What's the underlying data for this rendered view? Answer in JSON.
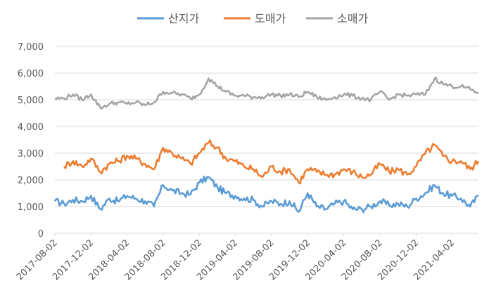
{
  "chart_data": {
    "type": "line",
    "title": "",
    "xlabel": "",
    "ylabel": "",
    "ylim": [
      0,
      7000
    ],
    "yticks": [
      "0",
      "1,000",
      "2,000",
      "3,000",
      "4,000",
      "5,000",
      "6,000",
      "7,000"
    ],
    "ytick_values": [
      0,
      1000,
      2000,
      3000,
      4000,
      5000,
      6000,
      7000
    ],
    "xlim": [
      "2017-08-02",
      "2021-06-30"
    ],
    "xticks": [
      "2017-08-02",
      "2017-12-02",
      "2018-04-02",
      "2018-08-02",
      "2018-12-02",
      "2019-04-02",
      "2019-08-02",
      "2019-12-02",
      "2020-04-02",
      "2020-08-02",
      "2020-12-02",
      "2021-04-02"
    ],
    "grid": "horizontal",
    "legend_position": "top",
    "x": [
      "2017-08-02",
      "2017-09-02",
      "2017-10-02",
      "2017-11-02",
      "2017-12-02",
      "2018-01-02",
      "2018-02-02",
      "2018-03-02",
      "2018-04-02",
      "2018-05-02",
      "2018-06-02",
      "2018-07-02",
      "2018-08-02",
      "2018-09-02",
      "2018-10-02",
      "2018-11-02",
      "2018-12-02",
      "2019-01-02",
      "2019-02-02",
      "2019-03-02",
      "2019-04-02",
      "2019-05-02",
      "2019-06-02",
      "2019-07-02",
      "2019-08-02",
      "2019-09-02",
      "2019-10-02",
      "2019-11-02",
      "2019-12-02",
      "2020-01-02",
      "2020-02-02",
      "2020-03-02",
      "2020-04-02",
      "2020-05-02",
      "2020-06-02",
      "2020-07-02",
      "2020-08-02",
      "2020-09-02",
      "2020-10-02",
      "2020-11-02",
      "2020-12-02",
      "2021-01-02",
      "2021-02-02",
      "2021-03-02",
      "2021-04-02",
      "2021-05-02",
      "2021-06-02",
      "2021-06-30"
    ],
    "series": [
      {
        "name": "산지가",
        "color": "#5B9BD5",
        "values": [
          1200,
          1100,
          1250,
          1200,
          1400,
          900,
          1300,
          1200,
          1400,
          1300,
          1200,
          1000,
          1800,
          1600,
          1500,
          1450,
          1900,
          2100,
          1700,
          1500,
          1400,
          1300,
          1250,
          1000,
          1200,
          1100,
          1200,
          800,
          1500,
          1000,
          900,
          1100,
          1200,
          900,
          900,
          1000,
          1200,
          1050,
          1100,
          1000,
          1300,
          1500,
          1800,
          1500,
          1400,
          1300,
          1000,
          1400
        ]
      },
      {
        "name": "도매가",
        "color": "#ED7D31",
        "values": [
          null,
          2500,
          2700,
          2500,
          2800,
          2300,
          2600,
          2700,
          2900,
          2800,
          2600,
          2400,
          3200,
          3000,
          2800,
          2600,
          3000,
          3400,
          3200,
          2800,
          2700,
          2500,
          2400,
          2100,
          2500,
          2300,
          2400,
          1900,
          2400,
          2300,
          2200,
          2200,
          2400,
          2300,
          2100,
          2200,
          2600,
          2300,
          2400,
          2200,
          2500,
          3000,
          3300,
          2900,
          2700,
          2700,
          2400,
          2700
        ]
      },
      {
        "name": "소매가",
        "color": "#A5A5A5",
        "values": [
          5050,
          5050,
          5200,
          5000,
          5200,
          4700,
          4850,
          4900,
          4850,
          4900,
          4800,
          4900,
          5300,
          5250,
          5200,
          5050,
          5200,
          5800,
          5500,
          5300,
          5150,
          5150,
          5100,
          5100,
          5200,
          5150,
          5200,
          5100,
          5300,
          5100,
          5000,
          5100,
          5200,
          5150,
          5050,
          5000,
          5300,
          5000,
          5200,
          5150,
          5200,
          5200,
          5800,
          5600,
          5500,
          5500,
          5400,
          5250
        ]
      }
    ]
  }
}
